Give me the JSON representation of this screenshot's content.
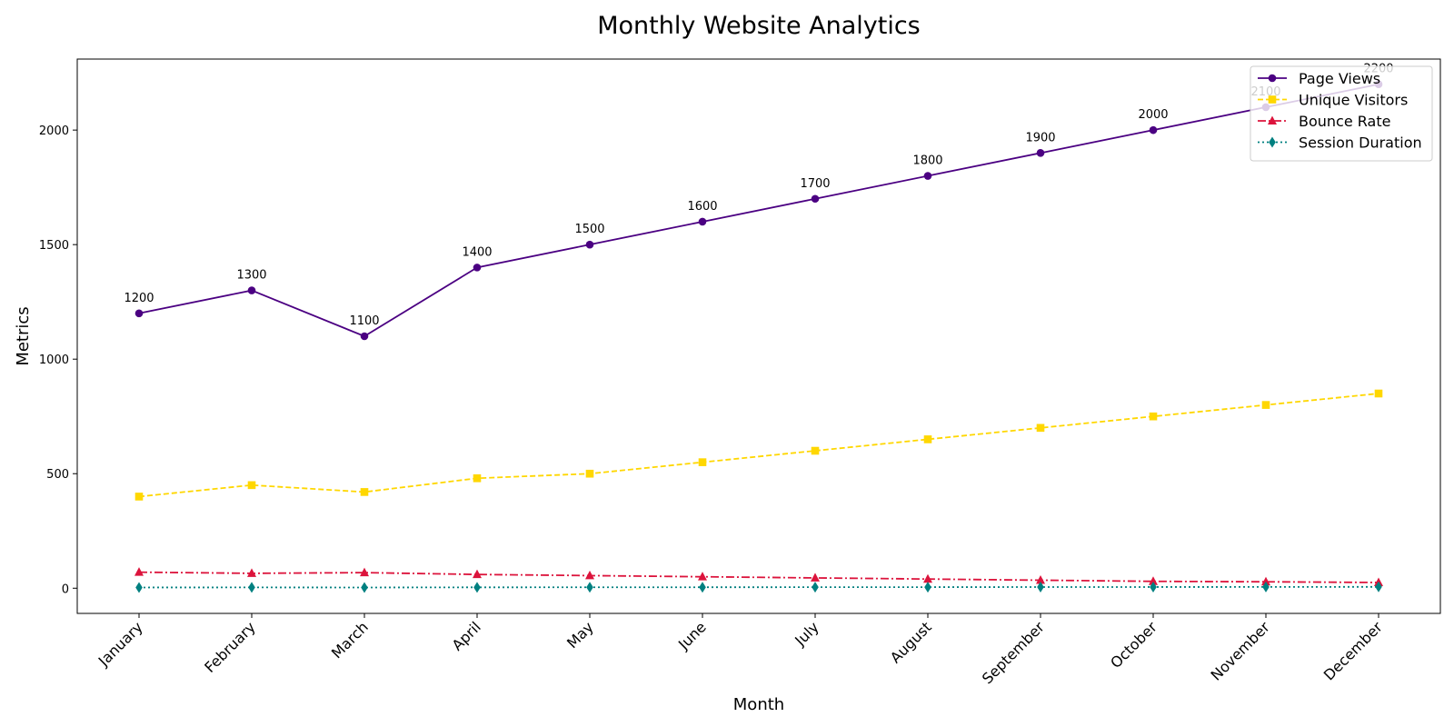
{
  "chart_data": {
    "type": "line",
    "title": "Monthly Website Analytics",
    "xlabel": "Month",
    "ylabel": "Metrics",
    "categories": [
      "January",
      "February",
      "March",
      "April",
      "May",
      "June",
      "July",
      "August",
      "September",
      "October",
      "November",
      "December"
    ],
    "ylim": [
      -110,
      2310
    ],
    "yticks": [
      0,
      500,
      1000,
      1500,
      2000
    ],
    "grid": false,
    "legend_position": "top-right",
    "series": [
      {
        "name": "Page Views",
        "color": "#4b0082",
        "line_style": "solid",
        "marker": "circle",
        "show_labels": true,
        "values": [
          1200,
          1300,
          1100,
          1400,
          1500,
          1600,
          1700,
          1800,
          1900,
          2000,
          2100,
          2200
        ]
      },
      {
        "name": "Unique Visitors",
        "color": "#ffd700",
        "line_style": "dashed",
        "marker": "square",
        "show_labels": false,
        "values": [
          400,
          450,
          420,
          480,
          500,
          550,
          600,
          650,
          700,
          750,
          800,
          850
        ]
      },
      {
        "name": "Bounce Rate",
        "color": "#dc143c",
        "line_style": "dashdot",
        "marker": "triangle",
        "show_labels": false,
        "values": [
          70,
          65,
          68,
          60,
          55,
          50,
          45,
          40,
          35,
          30,
          28,
          25
        ]
      },
      {
        "name": "Session Duration",
        "color": "#008080",
        "line_style": "dotted",
        "marker": "diamond",
        "show_labels": false,
        "values": [
          3.2,
          3.5,
          3.1,
          3.8,
          4.0,
          4.2,
          4.5,
          4.7,
          5.0,
          5.2,
          5.5,
          5.8
        ]
      }
    ]
  }
}
